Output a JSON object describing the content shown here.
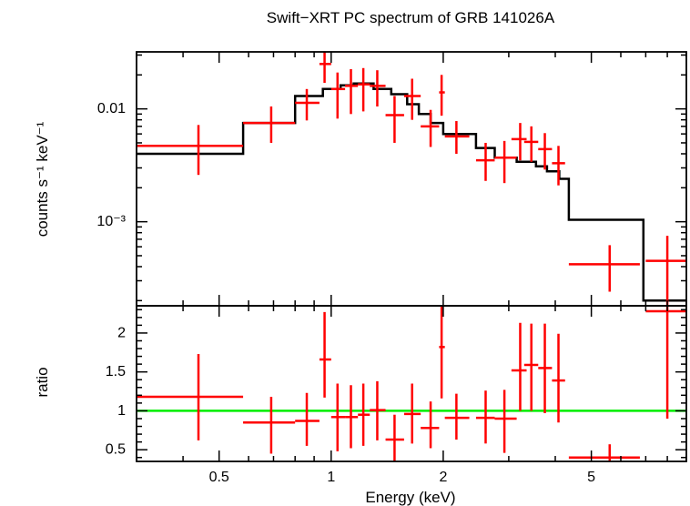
{
  "chart_data": {
    "type": "spectrum",
    "title": "Swift−XRT PC spectrum of GRB 141026A",
    "xlabel": "Energy (keV)",
    "xscale": "log",
    "xlim": [
      0.3,
      9.0
    ],
    "xticks": [
      0.5,
      1,
      2,
      5
    ],
    "xtick_labels": [
      "0.5",
      "1",
      "2",
      "5"
    ],
    "colors": {
      "data": "#ff0000",
      "model": "#000000",
      "ratio_line": "#00ee00",
      "axes": "#000000"
    },
    "top_panel": {
      "ylabel": "counts s⁻¹ keV⁻¹",
      "yscale": "log",
      "ylim": [
        0.00018,
        0.032
      ],
      "yticks": [
        0.01,
        0.001
      ],
      "ytick_labels": [
        "0.01",
        "10⁻³"
      ],
      "model": [
        {
          "x0": 0.3,
          "x1": 0.58,
          "y": 0.004
        },
        {
          "x0": 0.58,
          "x1": 0.8,
          "y": 0.0075
        },
        {
          "x0": 0.8,
          "x1": 0.95,
          "y": 0.013
        },
        {
          "x0": 0.95,
          "x1": 1.06,
          "y": 0.015
        },
        {
          "x0": 1.06,
          "x1": 1.15,
          "y": 0.0162
        },
        {
          "x0": 1.15,
          "x1": 1.3,
          "y": 0.0168
        },
        {
          "x0": 1.3,
          "x1": 1.45,
          "y": 0.015
        },
        {
          "x0": 1.45,
          "x1": 1.6,
          "y": 0.0135
        },
        {
          "x0": 1.6,
          "x1": 1.72,
          "y": 0.011
        },
        {
          "x0": 1.72,
          "x1": 1.85,
          "y": 0.009
        },
        {
          "x0": 1.85,
          "x1": 2.0,
          "y": 0.0075
        },
        {
          "x0": 2.0,
          "x1": 2.45,
          "y": 0.006
        },
        {
          "x0": 2.45,
          "x1": 2.75,
          "y": 0.0045
        },
        {
          "x0": 2.75,
          "x1": 3.15,
          "y": 0.0037
        },
        {
          "x0": 3.15,
          "x1": 3.55,
          "y": 0.0034
        },
        {
          "x0": 3.55,
          "x1": 3.8,
          "y": 0.0031
        },
        {
          "x0": 3.8,
          "x1": 4.1,
          "y": 0.0028
        },
        {
          "x0": 4.1,
          "x1": 4.35,
          "y": 0.0024
        },
        {
          "x0": 4.35,
          "x1": 6.9,
          "y": 0.00104
        },
        {
          "x0": 6.9,
          "x1": 9.0,
          "y": 0.0002
        }
      ],
      "points": [
        {
          "x": 0.44,
          "xlo": 0.3,
          "xhi": 0.58,
          "y": 0.0047,
          "ylo": 0.0026,
          "yhi": 0.0072
        },
        {
          "x": 0.69,
          "xlo": 0.58,
          "xhi": 0.8,
          "y": 0.0075,
          "ylo": 0.005,
          "yhi": 0.0105
        },
        {
          "x": 0.86,
          "xlo": 0.8,
          "xhi": 0.93,
          "y": 0.0113,
          "ylo": 0.0079,
          "yhi": 0.015
        },
        {
          "x": 0.96,
          "xlo": 0.93,
          "xhi": 1.0,
          "y": 0.025,
          "ylo": 0.017,
          "yhi": 0.033
        },
        {
          "x": 1.04,
          "xlo": 1.0,
          "xhi": 1.09,
          "y": 0.015,
          "ylo": 0.0082,
          "yhi": 0.021
        },
        {
          "x": 1.13,
          "xlo": 1.09,
          "xhi": 1.18,
          "y": 0.016,
          "ylo": 0.009,
          "yhi": 0.0225
        },
        {
          "x": 1.22,
          "xlo": 1.18,
          "xhi": 1.27,
          "y": 0.0165,
          "ylo": 0.0095,
          "yhi": 0.023
        },
        {
          "x": 1.33,
          "xlo": 1.27,
          "xhi": 1.4,
          "y": 0.016,
          "ylo": 0.0105,
          "yhi": 0.022
        },
        {
          "x": 1.48,
          "xlo": 1.4,
          "xhi": 1.57,
          "y": 0.0088,
          "ylo": 0.005,
          "yhi": 0.013
        },
        {
          "x": 1.65,
          "xlo": 1.57,
          "xhi": 1.74,
          "y": 0.013,
          "ylo": 0.008,
          "yhi": 0.0185
        },
        {
          "x": 1.85,
          "xlo": 1.74,
          "xhi": 1.95,
          "y": 0.007,
          "ylo": 0.0046,
          "yhi": 0.0098
        },
        {
          "x": 1.98,
          "xlo": 1.95,
          "xhi": 2.02,
          "y": 0.014,
          "ylo": 0.0087,
          "yhi": 0.02
        },
        {
          "x": 2.17,
          "xlo": 2.02,
          "xhi": 2.35,
          "y": 0.0057,
          "ylo": 0.004,
          "yhi": 0.0078
        },
        {
          "x": 2.6,
          "xlo": 2.45,
          "xhi": 2.75,
          "y": 0.0035,
          "ylo": 0.0023,
          "yhi": 0.005
        },
        {
          "x": 2.92,
          "xlo": 2.75,
          "xhi": 3.15,
          "y": 0.0037,
          "ylo": 0.0022,
          "yhi": 0.0052
        },
        {
          "x": 3.22,
          "xlo": 3.05,
          "xhi": 3.35,
          "y": 0.0054,
          "ylo": 0.0035,
          "yhi": 0.0075
        },
        {
          "x": 3.45,
          "xlo": 3.3,
          "xhi": 3.6,
          "y": 0.0051,
          "ylo": 0.0034,
          "yhi": 0.007
        },
        {
          "x": 3.75,
          "xlo": 3.6,
          "xhi": 3.92,
          "y": 0.0044,
          "ylo": 0.0029,
          "yhi": 0.0061
        },
        {
          "x": 4.08,
          "xlo": 3.92,
          "xhi": 4.25,
          "y": 0.0033,
          "ylo": 0.0021,
          "yhi": 0.0047
        },
        {
          "x": 5.6,
          "xlo": 4.35,
          "xhi": 6.75,
          "y": 0.00042,
          "ylo": 0.00024,
          "yhi": 0.00062
        },
        {
          "x": 8.0,
          "xlo": 7.0,
          "xhi": 9.0,
          "y": 0.00045,
          "ylo": 0.00018,
          "yhi": 0.00075
        }
      ]
    },
    "bottom_panel": {
      "ylabel": "ratio",
      "yscale": "linear",
      "ylim": [
        0.35,
        2.35
      ],
      "yticks": [
        0.5,
        1,
        1.5,
        2
      ],
      "ytick_labels": [
        "0.5",
        "1",
        "1.5",
        "2"
      ],
      "reference_line": 1,
      "points": [
        {
          "x": 0.44,
          "xlo": 0.3,
          "xhi": 0.58,
          "y": 1.18,
          "ylo": 0.62,
          "yhi": 1.73
        },
        {
          "x": 0.69,
          "xlo": 0.58,
          "xhi": 0.8,
          "y": 0.85,
          "ylo": 0.45,
          "yhi": 1.18
        },
        {
          "x": 0.86,
          "xlo": 0.8,
          "xhi": 0.93,
          "y": 0.87,
          "ylo": 0.55,
          "yhi": 1.23
        },
        {
          "x": 0.96,
          "xlo": 0.93,
          "xhi": 1.0,
          "y": 1.66,
          "ylo": 1.17,
          "yhi": 2.27
        },
        {
          "x": 1.04,
          "xlo": 1.0,
          "xhi": 1.09,
          "y": 0.92,
          "ylo": 0.48,
          "yhi": 1.35
        },
        {
          "x": 1.13,
          "xlo": 1.09,
          "xhi": 1.18,
          "y": 0.92,
          "ylo": 0.52,
          "yhi": 1.33
        },
        {
          "x": 1.22,
          "xlo": 1.18,
          "xhi": 1.27,
          "y": 0.95,
          "ylo": 0.55,
          "yhi": 1.35
        },
        {
          "x": 1.33,
          "xlo": 1.27,
          "xhi": 1.4,
          "y": 1.01,
          "ylo": 0.62,
          "yhi": 1.38
        },
        {
          "x": 1.48,
          "xlo": 1.4,
          "xhi": 1.57,
          "y": 0.63,
          "ylo": 0.35,
          "yhi": 0.95
        },
        {
          "x": 1.65,
          "xlo": 1.57,
          "xhi": 1.74,
          "y": 0.96,
          "ylo": 0.58,
          "yhi": 1.35
        },
        {
          "x": 1.85,
          "xlo": 1.74,
          "xhi": 1.95,
          "y": 0.78,
          "ylo": 0.52,
          "yhi": 1.12
        },
        {
          "x": 1.98,
          "xlo": 1.95,
          "xhi": 2.02,
          "y": 1.82,
          "ylo": 1.16,
          "yhi": 2.35
        },
        {
          "x": 2.17,
          "xlo": 2.02,
          "xhi": 2.35,
          "y": 0.91,
          "ylo": 0.63,
          "yhi": 1.22
        },
        {
          "x": 2.6,
          "xlo": 2.45,
          "xhi": 2.75,
          "y": 0.91,
          "ylo": 0.58,
          "yhi": 1.26
        },
        {
          "x": 2.92,
          "xlo": 2.75,
          "xhi": 3.15,
          "y": 0.9,
          "ylo": 0.46,
          "yhi": 1.27
        },
        {
          "x": 3.22,
          "xlo": 3.05,
          "xhi": 3.35,
          "y": 1.52,
          "ylo": 1.0,
          "yhi": 2.13
        },
        {
          "x": 3.45,
          "xlo": 3.3,
          "xhi": 3.6,
          "y": 1.59,
          "ylo": 1.0,
          "yhi": 2.12
        },
        {
          "x": 3.75,
          "xlo": 3.6,
          "xhi": 3.92,
          "y": 1.55,
          "ylo": 0.97,
          "yhi": 2.12
        },
        {
          "x": 4.08,
          "xlo": 3.92,
          "xhi": 4.25,
          "y": 1.39,
          "ylo": 0.85,
          "yhi": 1.99
        },
        {
          "x": 5.6,
          "xlo": 4.35,
          "xhi": 6.75,
          "y": 0.4,
          "ylo": 0.35,
          "yhi": 0.57
        },
        {
          "x": 8.0,
          "xlo": 7.0,
          "xhi": 9.0,
          "y": 2.28,
          "ylo": 0.9,
          "yhi": 2.35
        }
      ]
    }
  }
}
